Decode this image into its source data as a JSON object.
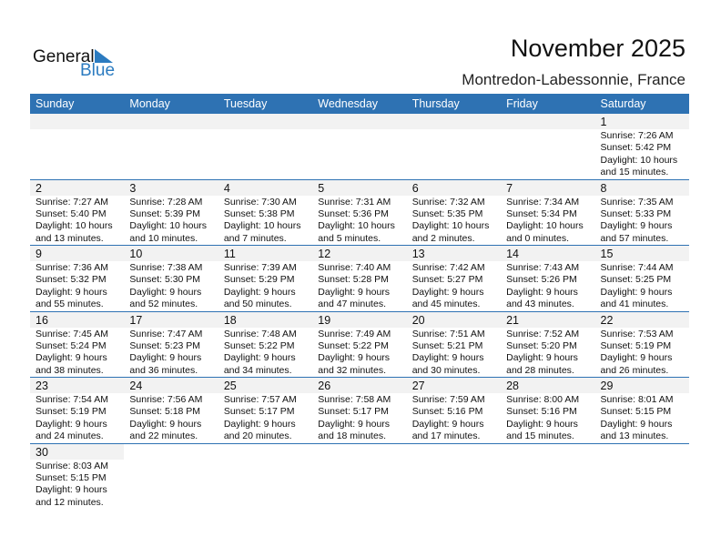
{
  "logo": {
    "text1": "General",
    "text2": "Blue"
  },
  "header": {
    "title": "November 2025",
    "location": "Montredon-Labessonnie, France"
  },
  "weekdays": [
    "Sunday",
    "Monday",
    "Tuesday",
    "Wednesday",
    "Thursday",
    "Friday",
    "Saturday"
  ],
  "colors": {
    "accent": "#2e72b3",
    "day_bg": "#f2f2f2"
  },
  "weeks": [
    [
      null,
      null,
      null,
      null,
      null,
      null,
      {
        "day": "1",
        "sunrise": "Sunrise: 7:26 AM",
        "sunset": "Sunset: 5:42 PM",
        "daylight1": "Daylight: 10 hours",
        "daylight2": "and 15 minutes."
      }
    ],
    [
      {
        "day": "2",
        "sunrise": "Sunrise: 7:27 AM",
        "sunset": "Sunset: 5:40 PM",
        "daylight1": "Daylight: 10 hours",
        "daylight2": "and 13 minutes."
      },
      {
        "day": "3",
        "sunrise": "Sunrise: 7:28 AM",
        "sunset": "Sunset: 5:39 PM",
        "daylight1": "Daylight: 10 hours",
        "daylight2": "and 10 minutes."
      },
      {
        "day": "4",
        "sunrise": "Sunrise: 7:30 AM",
        "sunset": "Sunset: 5:38 PM",
        "daylight1": "Daylight: 10 hours",
        "daylight2": "and 7 minutes."
      },
      {
        "day": "5",
        "sunrise": "Sunrise: 7:31 AM",
        "sunset": "Sunset: 5:36 PM",
        "daylight1": "Daylight: 10 hours",
        "daylight2": "and 5 minutes."
      },
      {
        "day": "6",
        "sunrise": "Sunrise: 7:32 AM",
        "sunset": "Sunset: 5:35 PM",
        "daylight1": "Daylight: 10 hours",
        "daylight2": "and 2 minutes."
      },
      {
        "day": "7",
        "sunrise": "Sunrise: 7:34 AM",
        "sunset": "Sunset: 5:34 PM",
        "daylight1": "Daylight: 10 hours",
        "daylight2": "and 0 minutes."
      },
      {
        "day": "8",
        "sunrise": "Sunrise: 7:35 AM",
        "sunset": "Sunset: 5:33 PM",
        "daylight1": "Daylight: 9 hours",
        "daylight2": "and 57 minutes."
      }
    ],
    [
      {
        "day": "9",
        "sunrise": "Sunrise: 7:36 AM",
        "sunset": "Sunset: 5:32 PM",
        "daylight1": "Daylight: 9 hours",
        "daylight2": "and 55 minutes."
      },
      {
        "day": "10",
        "sunrise": "Sunrise: 7:38 AM",
        "sunset": "Sunset: 5:30 PM",
        "daylight1": "Daylight: 9 hours",
        "daylight2": "and 52 minutes."
      },
      {
        "day": "11",
        "sunrise": "Sunrise: 7:39 AM",
        "sunset": "Sunset: 5:29 PM",
        "daylight1": "Daylight: 9 hours",
        "daylight2": "and 50 minutes."
      },
      {
        "day": "12",
        "sunrise": "Sunrise: 7:40 AM",
        "sunset": "Sunset: 5:28 PM",
        "daylight1": "Daylight: 9 hours",
        "daylight2": "and 47 minutes."
      },
      {
        "day": "13",
        "sunrise": "Sunrise: 7:42 AM",
        "sunset": "Sunset: 5:27 PM",
        "daylight1": "Daylight: 9 hours",
        "daylight2": "and 45 minutes."
      },
      {
        "day": "14",
        "sunrise": "Sunrise: 7:43 AM",
        "sunset": "Sunset: 5:26 PM",
        "daylight1": "Daylight: 9 hours",
        "daylight2": "and 43 minutes."
      },
      {
        "day": "15",
        "sunrise": "Sunrise: 7:44 AM",
        "sunset": "Sunset: 5:25 PM",
        "daylight1": "Daylight: 9 hours",
        "daylight2": "and 41 minutes."
      }
    ],
    [
      {
        "day": "16",
        "sunrise": "Sunrise: 7:45 AM",
        "sunset": "Sunset: 5:24 PM",
        "daylight1": "Daylight: 9 hours",
        "daylight2": "and 38 minutes."
      },
      {
        "day": "17",
        "sunrise": "Sunrise: 7:47 AM",
        "sunset": "Sunset: 5:23 PM",
        "daylight1": "Daylight: 9 hours",
        "daylight2": "and 36 minutes."
      },
      {
        "day": "18",
        "sunrise": "Sunrise: 7:48 AM",
        "sunset": "Sunset: 5:22 PM",
        "daylight1": "Daylight: 9 hours",
        "daylight2": "and 34 minutes."
      },
      {
        "day": "19",
        "sunrise": "Sunrise: 7:49 AM",
        "sunset": "Sunset: 5:22 PM",
        "daylight1": "Daylight: 9 hours",
        "daylight2": "and 32 minutes."
      },
      {
        "day": "20",
        "sunrise": "Sunrise: 7:51 AM",
        "sunset": "Sunset: 5:21 PM",
        "daylight1": "Daylight: 9 hours",
        "daylight2": "and 30 minutes."
      },
      {
        "day": "21",
        "sunrise": "Sunrise: 7:52 AM",
        "sunset": "Sunset: 5:20 PM",
        "daylight1": "Daylight: 9 hours",
        "daylight2": "and 28 minutes."
      },
      {
        "day": "22",
        "sunrise": "Sunrise: 7:53 AM",
        "sunset": "Sunset: 5:19 PM",
        "daylight1": "Daylight: 9 hours",
        "daylight2": "and 26 minutes."
      }
    ],
    [
      {
        "day": "23",
        "sunrise": "Sunrise: 7:54 AM",
        "sunset": "Sunset: 5:19 PM",
        "daylight1": "Daylight: 9 hours",
        "daylight2": "and 24 minutes."
      },
      {
        "day": "24",
        "sunrise": "Sunrise: 7:56 AM",
        "sunset": "Sunset: 5:18 PM",
        "daylight1": "Daylight: 9 hours",
        "daylight2": "and 22 minutes."
      },
      {
        "day": "25",
        "sunrise": "Sunrise: 7:57 AM",
        "sunset": "Sunset: 5:17 PM",
        "daylight1": "Daylight: 9 hours",
        "daylight2": "and 20 minutes."
      },
      {
        "day": "26",
        "sunrise": "Sunrise: 7:58 AM",
        "sunset": "Sunset: 5:17 PM",
        "daylight1": "Daylight: 9 hours",
        "daylight2": "and 18 minutes."
      },
      {
        "day": "27",
        "sunrise": "Sunrise: 7:59 AM",
        "sunset": "Sunset: 5:16 PM",
        "daylight1": "Daylight: 9 hours",
        "daylight2": "and 17 minutes."
      },
      {
        "day": "28",
        "sunrise": "Sunrise: 8:00 AM",
        "sunset": "Sunset: 5:16 PM",
        "daylight1": "Daylight: 9 hours",
        "daylight2": "and 15 minutes."
      },
      {
        "day": "29",
        "sunrise": "Sunrise: 8:01 AM",
        "sunset": "Sunset: 5:15 PM",
        "daylight1": "Daylight: 9 hours",
        "daylight2": "and 13 minutes."
      }
    ],
    [
      {
        "day": "30",
        "sunrise": "Sunrise: 8:03 AM",
        "sunset": "Sunset: 5:15 PM",
        "daylight1": "Daylight: 9 hours",
        "daylight2": "and 12 minutes."
      }
    ]
  ]
}
